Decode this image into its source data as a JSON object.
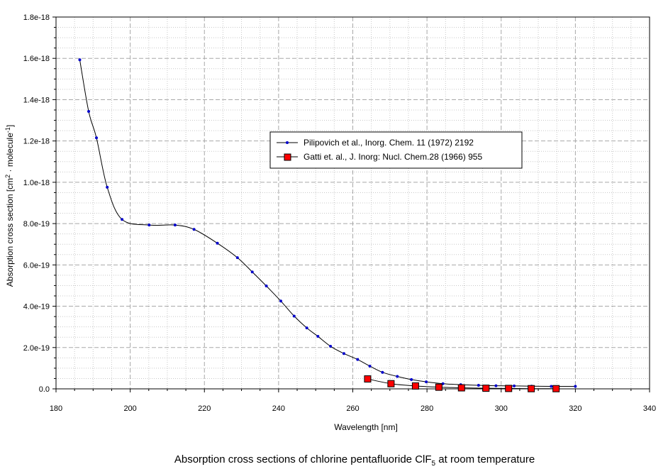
{
  "chart_data": {
    "type": "line",
    "caption": {
      "pre": "Absorption cross sections of chlorine pentafluoride ClF",
      "sub": "5",
      "post": " at room temperature"
    },
    "xlabel": "Wavelength [nm]",
    "ylabel": {
      "pre": "Absorption cross section [cm",
      "sup1": "2",
      "mid": " · molecule",
      "sup2": "-1",
      "post": "]"
    },
    "xlim": [
      180,
      340
    ],
    "ylim": [
      0,
      1.8e-18
    ],
    "x_ticks": [
      180,
      200,
      220,
      240,
      260,
      280,
      300,
      320,
      340
    ],
    "x_tick_labels": [
      "180",
      "200",
      "220",
      "240",
      "260",
      "280",
      "300",
      "320",
      "340"
    ],
    "y_ticks": [
      0,
      2e-19,
      4e-19,
      6e-19,
      8e-19,
      1e-18,
      1.2e-18,
      1.4e-18,
      1.6e-18,
      1.8e-18
    ],
    "y_tick_labels": [
      "0.0",
      "2.0e-19",
      "4.0e-19",
      "6.0e-19",
      "8.0e-19",
      "1.0e-18",
      "1.2e-18",
      "1.4e-18",
      "1.6e-18",
      "1.8e-18"
    ],
    "grid": true,
    "legend_position": "center-right",
    "series": [
      {
        "name": "Pilipovich et al., Inorg. Chem. 11 (1972) 2192",
        "color": "#0000cc",
        "marker": "dot",
        "x": [
          186.4,
          188.8,
          190.9,
          193.8,
          197.8,
          205.1,
          212.1,
          217.2,
          223.5,
          228.9,
          232.9,
          236.7,
          240.6,
          244.2,
          247.6,
          250.6,
          254.0,
          257.6,
          261.3,
          264.6,
          268.0,
          272.0,
          275.8,
          279.8,
          284.3,
          289.1,
          293.9,
          298.6,
          303.5,
          308.2,
          313.5,
          320.0
        ],
        "y": [
          1.593e-18,
          1.343e-18,
          1.215e-18,
          9.76e-19,
          8.2e-19,
          7.93e-19,
          7.93e-19,
          7.72e-19,
          7.05e-19,
          6.35e-19,
          5.66e-19,
          4.98e-19,
          4.25e-19,
          3.52e-19,
          2.95e-19,
          2.54e-19,
          2.06e-19,
          1.71e-19,
          1.42e-19,
          1.1e-19,
          8e-20,
          6e-20,
          4.5e-20,
          3.4e-20,
          2.5e-20,
          2e-20,
          1.7e-20,
          1.5e-20,
          1.4e-20,
          1.3e-20,
          1.2e-20,
          1.2e-20
        ]
      },
      {
        "name": "Gatti et. al., J. Inorg: Nucl. Chem.28 (1966) 955",
        "color": "#ff0000",
        "marker": "square",
        "x": [
          264.0,
          270.3,
          276.9,
          283.2,
          289.3,
          295.9,
          302.0,
          308.1,
          314.8
        ],
        "y": [
          4.8e-20,
          2.5e-20,
          1.4e-20,
          8e-21,
          5e-21,
          3e-21,
          2e-21,
          1e-21,
          1e-21
        ]
      }
    ]
  }
}
